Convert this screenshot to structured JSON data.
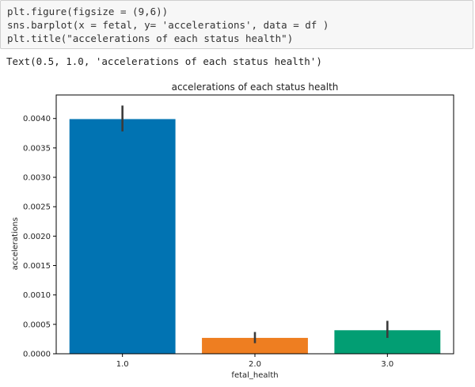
{
  "code_cell": {
    "lines": [
      "plt.figure(figsize = (9,6))",
      "sns.barplot(x = fetal, y= 'accelerations', data = df )",
      "plt.title(\"accelerations of each status health\")"
    ]
  },
  "output": {
    "text": "Text(0.5, 1.0, 'accelerations of each status health')"
  },
  "chart_data": {
    "type": "bar",
    "title": "accelerations of each status health",
    "xlabel": "fetal_health",
    "ylabel": "accelerations",
    "categories": [
      "1.0",
      "2.0",
      "3.0"
    ],
    "values": [
      0.00399,
      0.00027,
      0.0004
    ],
    "error_bars": [
      [
        0.00378,
        0.00422
      ],
      [
        0.00018,
        0.00037
      ],
      [
        0.00027,
        0.00056
      ]
    ],
    "colors": [
      "#0173b2",
      "#ee7e21",
      "#029e73"
    ],
    "error_color": "#3b3b3b",
    "ylim": [
      0,
      0.0044
    ],
    "yticks": [
      {
        "value": 0,
        "label": "0.0000"
      },
      {
        "value": 0.0005,
        "label": "0.0005"
      },
      {
        "value": 0.001,
        "label": "0.0010"
      },
      {
        "value": 0.0015,
        "label": "0.0015"
      },
      {
        "value": 0.002,
        "label": "0.0020"
      },
      {
        "value": 0.0025,
        "label": "0.0025"
      },
      {
        "value": 0.003,
        "label": "0.0030"
      },
      {
        "value": 0.0035,
        "label": "0.0035"
      },
      {
        "value": 0.004,
        "label": "0.0040"
      }
    ],
    "grid": false,
    "legend": "none"
  }
}
